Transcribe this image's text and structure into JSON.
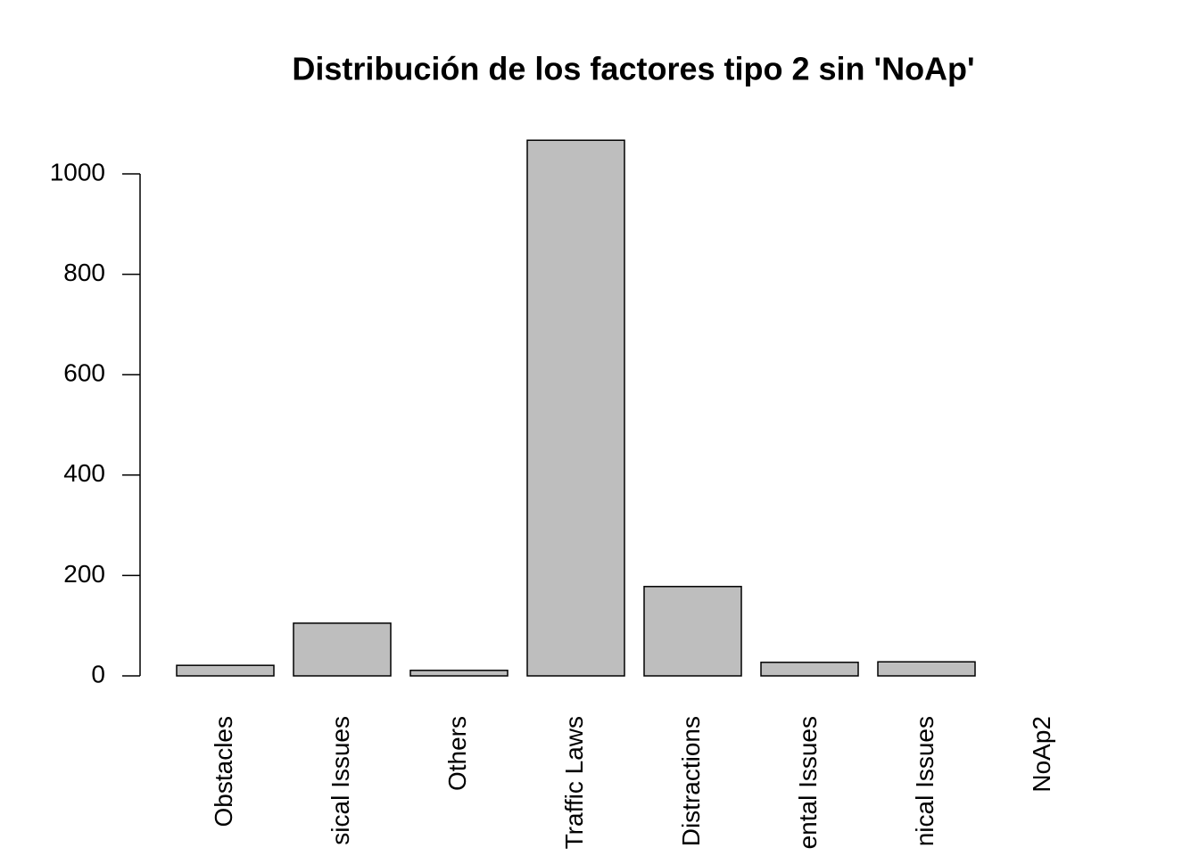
{
  "chart_data": {
    "type": "bar",
    "title": "Distribución de los factores tipo 2 sin 'NoAp'",
    "categories": [
      "Obstacles",
      "sical Issues",
      "Others",
      "Traffic Laws",
      "Distractions",
      "ental Issues",
      "nical Issues",
      "NoAp2"
    ],
    "values": [
      21,
      105,
      11,
      1067,
      178,
      27,
      28,
      0
    ],
    "color": "#bebebe",
    "ylim": [
      0,
      1000
    ],
    "yticks": [
      0,
      200,
      400,
      600,
      800,
      1000
    ],
    "grid": false
  }
}
